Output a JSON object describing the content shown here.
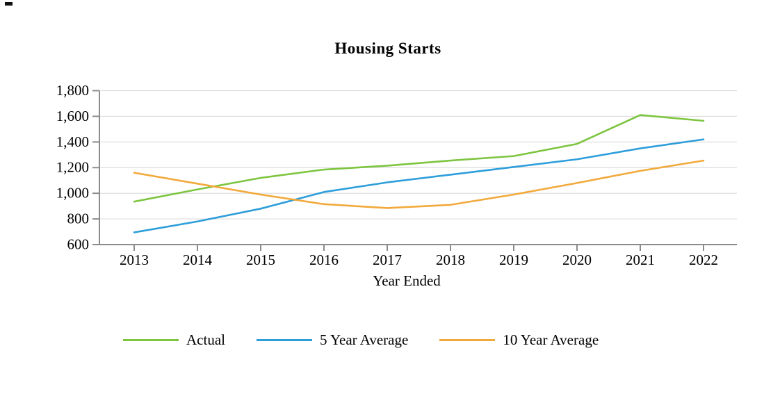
{
  "chart": {
    "title": "Housing Starts",
    "x_axis_label": "Year Ended"
  },
  "chart_data": {
    "type": "line",
    "title": "Housing Starts",
    "xlabel": "Year Ended",
    "ylabel": "",
    "categories": [
      "2013",
      "2014",
      "2015",
      "2016",
      "2017",
      "2018",
      "2019",
      "2020",
      "2021",
      "2022"
    ],
    "series": [
      {
        "name": "Actual",
        "color": "#7DC540",
        "values": [
          935,
          1030,
          1120,
          1185,
          1215,
          1255,
          1290,
          1385,
          1610,
          1565
        ]
      },
      {
        "name": "5 Year Average",
        "color": "#2E9EDB",
        "values": [
          695,
          780,
          880,
          1010,
          1085,
          1145,
          1205,
          1265,
          1350,
          1420
        ]
      },
      {
        "name": "10 Year Average",
        "color": "#F2A93B",
        "values": [
          1160,
          1075,
          990,
          915,
          885,
          910,
          990,
          1080,
          1175,
          1255
        ]
      }
    ],
    "ylim": [
      600,
      1800
    ],
    "y_tick_step": 200,
    "y_tick_labels": [
      "600",
      "800",
      "1,000",
      "1,200",
      "1,400",
      "1,600",
      "1,800"
    ],
    "grid": true,
    "legend_position": "bottom",
    "axis_color": "#8C8C8C",
    "grid_color": "#DCDCDC"
  }
}
